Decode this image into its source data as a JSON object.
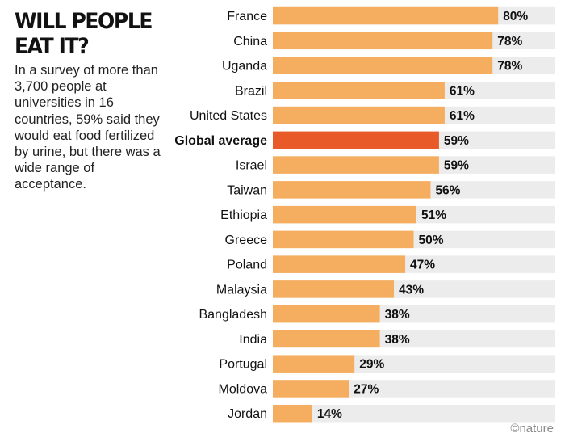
{
  "header": {
    "title": "WILL PEOPLE EAT IT?",
    "subtitle": "In a survey of more than 3,700 people at universities in 16 countries, 59% said they would eat food fertilized by urine, but there was a wide range of acceptance."
  },
  "credit": "©nature",
  "colors": {
    "bar": "#F5AE5F",
    "highlight": "#E85B28",
    "track": "#ECECEC",
    "text": "#111111"
  },
  "chart_data": {
    "type": "bar",
    "orientation": "horizontal",
    "title": "WILL PEOPLE EAT IT?",
    "xlim": [
      0,
      100
    ],
    "value_suffix": "%",
    "highlight": "Global average",
    "categories": [
      "France",
      "China",
      "Uganda",
      "Brazil",
      "United States",
      "Global average",
      "Israel",
      "Taiwan",
      "Ethiopia",
      "Greece",
      "Poland",
      "Malaysia",
      "Bangladesh",
      "India",
      "Portugal",
      "Moldova",
      "Jordan"
    ],
    "values": [
      80,
      78,
      78,
      61,
      61,
      59,
      59,
      56,
      51,
      50,
      47,
      43,
      38,
      38,
      29,
      27,
      14
    ]
  }
}
